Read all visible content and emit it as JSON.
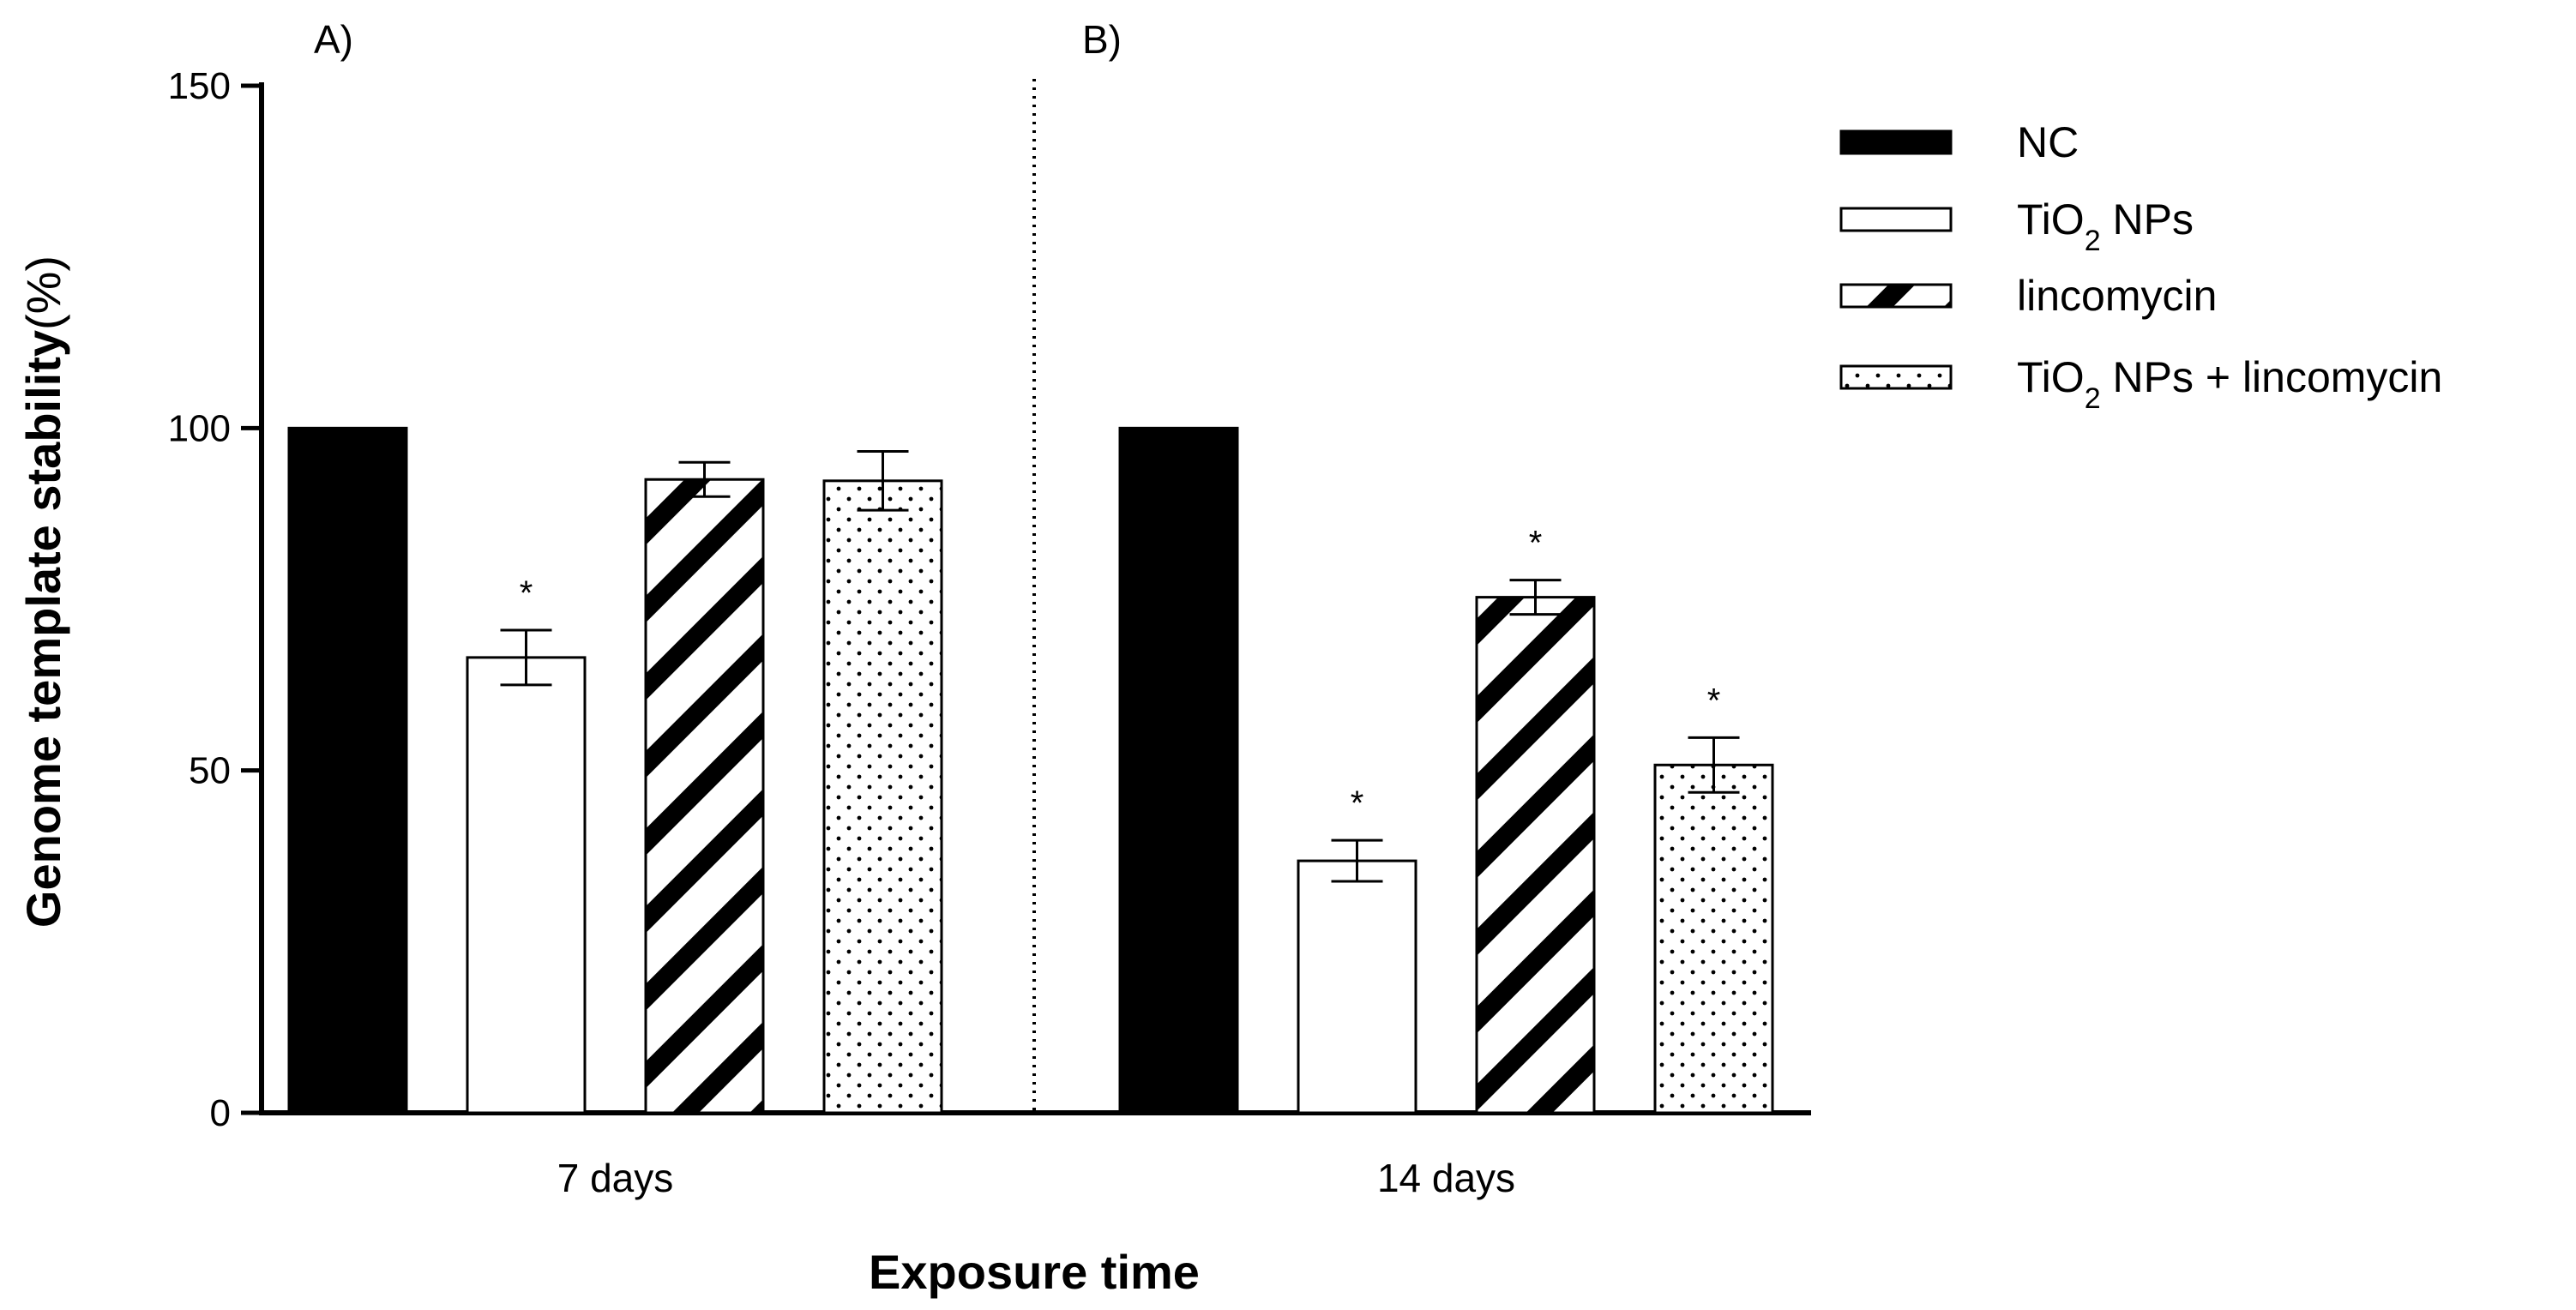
{
  "chart_data": {
    "type": "bar",
    "categories": [
      "7 days",
      "14 days"
    ],
    "panel_labels": [
      "A)",
      "B)"
    ],
    "xlabel": "Exposure time",
    "ylabel": "Genome  template stability",
    "ylabel_unit": "(%)",
    "ylim": [
      0,
      150
    ],
    "yticks": [
      0,
      50,
      100,
      150
    ],
    "legend_position": "top-right",
    "significance_marker": "*",
    "series": [
      {
        "name": "NC",
        "pattern": "solid-black",
        "values": [
          100,
          100
        ],
        "errors": [
          0,
          0
        ],
        "significant": [
          false,
          false
        ]
      },
      {
        "name": "TiO2 NPs",
        "name_main": "TiO",
        "name_sub": "2",
        "name_rest": " NPs",
        "pattern": "white",
        "values": [
          66.5,
          36.8
        ],
        "errors": [
          4.0,
          3.0
        ],
        "significant": [
          true,
          true
        ]
      },
      {
        "name": "lincomycin",
        "pattern": "diagonal-stripes",
        "values": [
          92.5,
          75.3
        ],
        "errors": [
          2.5,
          2.5
        ],
        "significant": [
          false,
          true
        ]
      },
      {
        "name": "TiO2 NPs + lincomycin",
        "name_main": "TiO",
        "name_sub": "2",
        "name_rest": " NPs + lincomycin",
        "pattern": "dots",
        "values": [
          92.3,
          50.8
        ],
        "errors": [
          4.3,
          4.0
        ],
        "significant": [
          false,
          true
        ]
      }
    ]
  },
  "colors": {
    "axis": "#000000",
    "bar_solid": "#000000",
    "bar_white": "#ffffff"
  }
}
